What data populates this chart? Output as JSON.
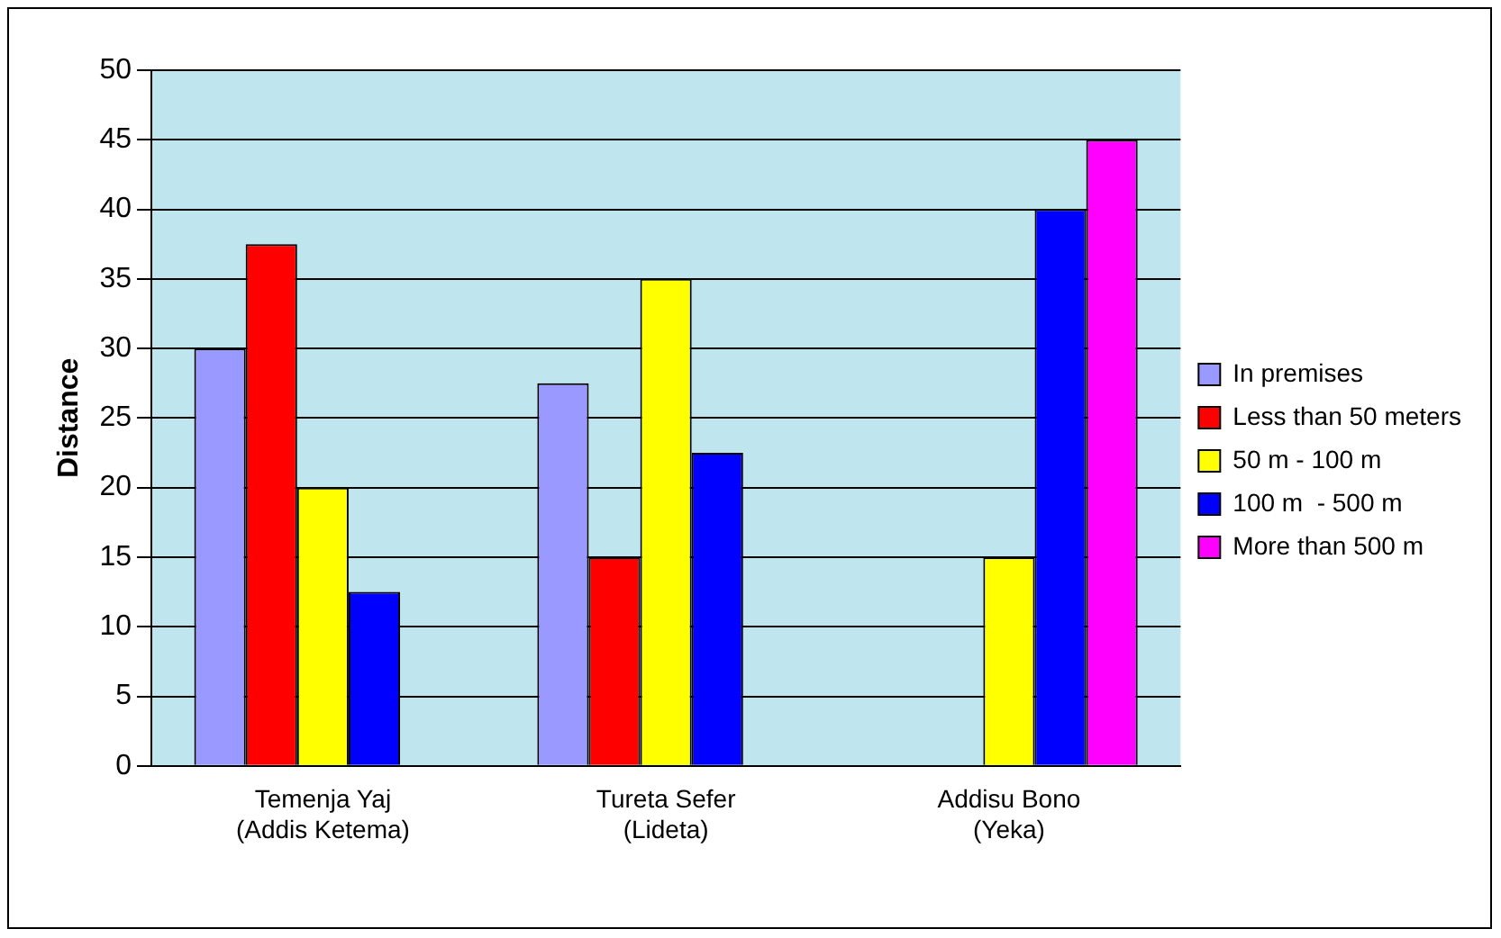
{
  "chart_data": {
    "type": "bar",
    "ylabel": "Distance",
    "categories": [
      "Temenja Yaj (Addis Ketema)",
      "Tureta Sefer (Lideta)",
      "Addisu Bono (Yeka)"
    ],
    "series": [
      {
        "name": "In premises",
        "color": "#9999ff",
        "values": [
          30,
          27.5,
          null
        ]
      },
      {
        "name": "Less than 50 meters",
        "color": "#ff0000",
        "values": [
          37.5,
          15,
          null
        ]
      },
      {
        "name": "50 m - 100 m",
        "color": "#ffff00",
        "values": [
          20,
          35,
          15
        ]
      },
      {
        "name": "100 m  - 500 m",
        "color": "#0000ff",
        "values": [
          12.5,
          22.5,
          40
        ]
      },
      {
        "name": "More than 500 m",
        "color": "#ff00ff",
        "values": [
          null,
          null,
          45
        ]
      }
    ],
    "ylim": [
      0,
      50
    ],
    "yticks": [
      0,
      5,
      10,
      15,
      20,
      25,
      30,
      35,
      40,
      45,
      50
    ],
    "grid": "y",
    "legend": "right"
  }
}
